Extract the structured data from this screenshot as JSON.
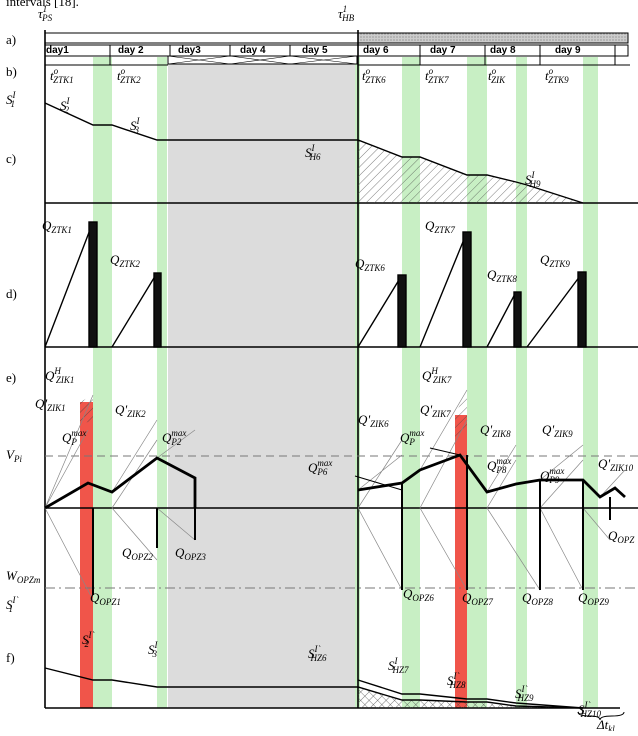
{
  "caption_fragment": "intervals [18].",
  "panels": [
    "a)",
    "b)",
    "c)",
    "d)",
    "e)",
    "f)"
  ],
  "days": [
    "day1",
    "day 2",
    "day3",
    "day 4",
    "day 5",
    "day 6",
    "day 7",
    "day 8",
    "day 9"
  ],
  "labels": [
    {
      "base": "τ",
      "sup": "1",
      "sub": "PS"
    },
    {
      "base": "τ",
      "sup": "1",
      "sub": "HB"
    },
    {
      "base": "t",
      "sup": "o",
      "sub": "ZTK1"
    },
    {
      "base": "t",
      "sup": "o",
      "sub": "ZTK2"
    },
    {
      "base": "t",
      "sup": "o",
      "sub": "ZTK6"
    },
    {
      "base": "t",
      "sup": "o",
      "sub": "ZTK7"
    },
    {
      "base": "t",
      "sup": "o",
      "sub": "ZIK"
    },
    {
      "base": "t",
      "sup": "o",
      "sub": "ZTK9"
    },
    {
      "base": "S",
      "sup": "I",
      "sub": "1"
    },
    {
      "base": "S",
      "sup": "I",
      "sub": "2"
    },
    {
      "base": "S",
      "sup": "I",
      "sub": "3"
    },
    {
      "base": "S",
      "sup": "I",
      "sub": "H6"
    },
    {
      "base": "S",
      "sup": "I",
      "sub": "H9"
    },
    {
      "base": "Q",
      "sub": "ZTK1"
    },
    {
      "base": "Q",
      "sub": "ZTK2"
    },
    {
      "base": "Q",
      "sub": "ZTK6"
    },
    {
      "base": "Q",
      "sub": "ZTK7"
    },
    {
      "base": "Q",
      "sub": "ZTK8"
    },
    {
      "base": "Q",
      "sub": "ZTK9"
    },
    {
      "base": "Q",
      "sup": "H",
      "sub": "ZIK1"
    },
    {
      "base": "Q'",
      "sub": "ZIK1"
    },
    {
      "base": "Q'",
      "sub": "ZIK2"
    },
    {
      "base": "Q",
      "sub": "P",
      "sup": "max"
    },
    {
      "base": "Q",
      "sub": "P2",
      "sup": "max"
    },
    {
      "base": "V",
      "sub": "Pi"
    },
    {
      "base": "Q",
      "sup": "H",
      "sub": "ZIK7"
    },
    {
      "base": "Q'",
      "sub": "ZIK6"
    },
    {
      "base": "Q'",
      "sub": "ZIK7"
    },
    {
      "base": "Q",
      "sub": "P",
      "sup": "max"
    },
    {
      "base": "Q'",
      "sub": "ZIK8"
    },
    {
      "base": "Q'",
      "sub": "ZIK9"
    },
    {
      "base": "Q",
      "sub": "P6",
      "sup": "max"
    },
    {
      "base": "Q",
      "sub": "P8",
      "sup": "max"
    },
    {
      "base": "Q",
      "sub": "P9",
      "sup": "max"
    },
    {
      "base": "Q'",
      "sub": "ZIK10"
    },
    {
      "base": "Q",
      "sub": "OPZ2"
    },
    {
      "base": "Q",
      "sub": "OPZ3"
    },
    {
      "base": "Q",
      "sub": "OPZ"
    },
    {
      "base": "W",
      "sub": "OPZm"
    },
    {
      "base": "Q",
      "sub": "OPZ1"
    },
    {
      "base": "Q",
      "sub": "OPZ6"
    },
    {
      "base": "Q",
      "sub": "OPZ7"
    },
    {
      "base": "Q",
      "sub": "OPZ8"
    },
    {
      "base": "Q",
      "sub": "OPZ9"
    },
    {
      "base": "S",
      "sup": "I`",
      "sub": "1"
    },
    {
      "base": "S",
      "sup": "I`",
      "sub": "2"
    },
    {
      "base": "S",
      "sup": "I",
      "sub": "3"
    },
    {
      "base": "S",
      "sup": "I`",
      "sub": "HZ6"
    },
    {
      "base": "S",
      "sup": "I",
      "sub": "HZ7"
    },
    {
      "base": "S",
      "sup": "I`",
      "sub": "HZ8"
    },
    {
      "base": "S",
      "sup": "I`",
      "sub": "HZ9"
    },
    {
      "base": "S",
      "sup": "I`",
      "sub": "HZ10"
    },
    {
      "base": "Δt",
      "sub": "kl"
    }
  ]
}
